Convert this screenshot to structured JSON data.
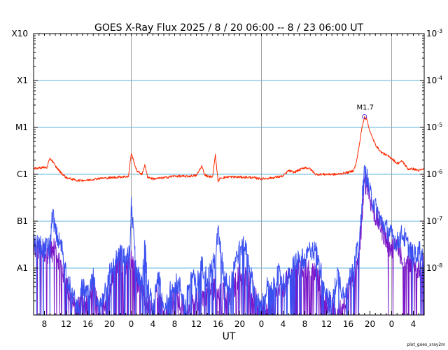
{
  "chart_data": {
    "type": "line",
    "title": "GOES X-Ray Flux   2025  /  8 / 20   06:00 --  8 / 23   06:00   UT",
    "xlabel": "UT",
    "footer": "plot_goes_xray2m",
    "x_start": "2025-08-20 06:00",
    "x_end": "2025-08-23 06:00",
    "x_ticks": [
      "8",
      "12",
      "16",
      "20",
      "0",
      "4",
      "8",
      "12",
      "16",
      "20",
      "0",
      "4",
      "8",
      "12",
      "16",
      "20",
      "0",
      "4"
    ],
    "day_boundaries": [
      "2025-08-21 00:00",
      "2025-08-22 00:00",
      "2025-08-23 00:00"
    ],
    "y_scale": "log",
    "ylim_W_m2": [
      1e-09,
      0.001
    ],
    "y_left_ticks": [
      "",
      "A1",
      "B1",
      "C1",
      "M1",
      "X1",
      "X10"
    ],
    "y_right_ticks": [
      {
        "base": "10",
        "exp": "-8"
      },
      {
        "base": "10",
        "exp": "-7"
      },
      {
        "base": "10",
        "exp": "-6"
      },
      {
        "base": "10",
        "exp": "-5"
      },
      {
        "base": "10",
        "exp": "-4"
      },
      {
        "base": "10",
        "exp": "-3"
      }
    ],
    "grid": "horizontal lines at each decade; vertical lines at 00:00 UT",
    "annotation": {
      "label": "M1.7",
      "time": "2025-08-22 19:00",
      "value": 1.7e-05
    },
    "colors": {
      "long_channel": "#ff2a00",
      "short_channel_a": "#3a50f0",
      "short_channel_b": "#7a18c8",
      "grid_h": "#5fb4dc",
      "grid_v": "#a0a0a0"
    },
    "series": [
      {
        "id": "long",
        "x": [
          "2025-08-20 06:00",
          "2025-08-20 07:30",
          "2025-08-20 08:30",
          "2025-08-20 09:00",
          "2025-08-20 09:30",
          "2025-08-20 10:00",
          "2025-08-20 11:00",
          "2025-08-20 12:00",
          "2025-08-20 14:00",
          "2025-08-20 16:00",
          "2025-08-20 18:00",
          "2025-08-20 20:00",
          "2025-08-20 22:00",
          "2025-08-20 23:30",
          "2025-08-21 00:00",
          "2025-08-21 01:00",
          "2025-08-21 02:00",
          "2025-08-21 02:30",
          "2025-08-21 03:00",
          "2025-08-21 04:00",
          "2025-08-21 06:00",
          "2025-08-21 08:00",
          "2025-08-21 10:00",
          "2025-08-21 12:00",
          "2025-08-21 13:00",
          "2025-08-21 13:30",
          "2025-08-21 14:00",
          "2025-08-21 15:00",
          "2025-08-21 15:30",
          "2025-08-21 16:00",
          "2025-08-21 16:30",
          "2025-08-21 18:00",
          "2025-08-21 20:00",
          "2025-08-21 22:00",
          "2025-08-22 00:00",
          "2025-08-22 02:00",
          "2025-08-22 04:00",
          "2025-08-22 05:00",
          "2025-08-22 06:00",
          "2025-08-22 08:00",
          "2025-08-22 09:00",
          "2025-08-22 10:00",
          "2025-08-22 12:00",
          "2025-08-22 14:00",
          "2025-08-22 16:00",
          "2025-08-22 17:00",
          "2025-08-22 17:30",
          "2025-08-22 18:00",
          "2025-08-22 18:30",
          "2025-08-22 19:00",
          "2025-08-22 19:30",
          "2025-08-22 20:00",
          "2025-08-22 21:00",
          "2025-08-22 22:00",
          "2025-08-23 00:00",
          "2025-08-23 01:00",
          "2025-08-23 02:00",
          "2025-08-23 03:00",
          "2025-08-23 04:00",
          "2025-08-23 05:00",
          "2025-08-23 06:00"
        ],
        "values": [
          1.3e-06,
          1.4e-06,
          1.4e-06,
          2.2e-06,
          1.9e-06,
          1.5e-06,
          1.1e-06,
          8.5e-07,
          7.4e-07,
          7.5e-07,
          8.2e-07,
          8.4e-07,
          8.8e-07,
          9e-07,
          2.8e-06,
          1.2e-06,
          1e-06,
          1.6e-06,
          8.8e-07,
          8e-07,
          8.4e-07,
          9.2e-07,
          9e-07,
          9.4e-07,
          1.5e-06,
          1e-06,
          9.2e-07,
          8.7e-07,
          2.6e-06,
          7.2e-07,
          8.4e-07,
          8.8e-07,
          8.7e-07,
          8.6e-07,
          8e-07,
          8.4e-07,
          9.2e-07,
          1.2e-06,
          1.1e-06,
          1.4e-06,
          1.3e-06,
          1e-06,
          1e-06,
          1e-06,
          1.1e-06,
          1.2e-06,
          1.8e-06,
          4e-06,
          9.5e-06,
          1.7e-05,
          1.4e-05,
          8e-06,
          4.3e-06,
          3e-06,
          2.2e-06,
          1.7e-06,
          1.9e-06,
          1.3e-06,
          1.3e-06,
          1.2e-06,
          1.3e-06
        ]
      },
      {
        "id": "short_a",
        "x": [
          "2025-08-20 06:00",
          "2025-08-20 07:00",
          "2025-08-20 08:00",
          "2025-08-20 09:00",
          "2025-08-20 09:30",
          "2025-08-20 10:00",
          "2025-08-20 10:30",
          "2025-08-20 11:00",
          "2025-08-20 11:30",
          "2025-08-20 12:00",
          "2025-08-20 13:00",
          "2025-08-20 14:00",
          "2025-08-20 15:00",
          "2025-08-20 16:00",
          "2025-08-20 17:00",
          "2025-08-20 18:00",
          "2025-08-20 19:00",
          "2025-08-20 20:00",
          "2025-08-20 21:00",
          "2025-08-20 22:00",
          "2025-08-20 23:00",
          "2025-08-20 23:45",
          "2025-08-21 00:00",
          "2025-08-21 00:30",
          "2025-08-21 01:00",
          "2025-08-21 02:00",
          "2025-08-21 02:30",
          "2025-08-21 03:00",
          "2025-08-21 04:00",
          "2025-08-21 05:00",
          "2025-08-21 06:00",
          "2025-08-21 07:00",
          "2025-08-21 08:00",
          "2025-08-21 09:00",
          "2025-08-21 10:00",
          "2025-08-21 11:00",
          "2025-08-21 12:00",
          "2025-08-21 13:00",
          "2025-08-21 14:00",
          "2025-08-21 15:00",
          "2025-08-21 15:30",
          "2025-08-21 16:00",
          "2025-08-21 17:00",
          "2025-08-21 18:00",
          "2025-08-21 19:00",
          "2025-08-21 20:00",
          "2025-08-21 21:00",
          "2025-08-21 22:00",
          "2025-08-21 23:00",
          "2025-08-22 00:00",
          "2025-08-22 01:00",
          "2025-08-22 02:00",
          "2025-08-22 03:00",
          "2025-08-22 04:00",
          "2025-08-22 05:00",
          "2025-08-22 06:00",
          "2025-08-22 07:00",
          "2025-08-22 08:00",
          "2025-08-22 09:00",
          "2025-08-22 10:00",
          "2025-08-22 11:00",
          "2025-08-22 12:00",
          "2025-08-22 13:00",
          "2025-08-22 14:00",
          "2025-08-22 15:00",
          "2025-08-22 16:00",
          "2025-08-22 17:00",
          "2025-08-22 17:30",
          "2025-08-22 18:00",
          "2025-08-22 18:30",
          "2025-08-22 19:00",
          "2025-08-22 19:30",
          "2025-08-22 20:00",
          "2025-08-22 21:00",
          "2025-08-22 22:00",
          "2025-08-22 23:00",
          "2025-08-23 00:00",
          "2025-08-23 01:00",
          "2025-08-23 02:00",
          "2025-08-23 03:00",
          "2025-08-23 04:00",
          "2025-08-23 05:00",
          "2025-08-23 06:00"
        ],
        "values": [
          3.2e-08,
          3.1e-08,
          2.6e-08,
          2.8e-08,
          1.6e-07,
          6e-08,
          4e-08,
          3e-08,
          2e-08,
          8e-09,
          3e-09,
          1.5e-09,
          4e-09,
          2.5e-09,
          6e-09,
          1.2e-09,
          3e-09,
          8e-09,
          1.3e-08,
          2e-08,
          1.5e-08,
          2e-08,
          2.2e-07,
          4e-08,
          8e-09,
          5e-09,
          3.5e-08,
          4e-09,
          1.5e-09,
          8e-09,
          1.2e-09,
          3e-09,
          5e-09,
          4e-09,
          1.5e-09,
          8e-09,
          4e-09,
          1.2e-08,
          6e-09,
          1.2e-08,
          1.5e-08,
          6e-08,
          8e-09,
          4e-09,
          1.3e-08,
          2.5e-08,
          3e-08,
          8e-09,
          2e-09,
          1.5e-09,
          4e-09,
          3e-09,
          8e-09,
          5e-09,
          6e-09,
          1.3e-08,
          1.6e-08,
          1.5e-08,
          2.5e-08,
          2.3e-08,
          8e-09,
          3e-09,
          1.5e-09,
          8e-09,
          3e-09,
          5e-09,
          1.3e-08,
          2e-08,
          2.5e-08,
          2.5e-07,
          1.1e-06,
          8e-07,
          4e-07,
          2e-07,
          1e-07,
          7e-08,
          5e-08,
          3.5e-08,
          5.5e-08,
          3e-08,
          1.8e-08,
          2.4e-08,
          1.5e-08
        ]
      },
      {
        "id": "short_b",
        "x": [
          "2025-08-20 06:00",
          "2025-08-20 07:00",
          "2025-08-20 08:00",
          "2025-08-20 09:00",
          "2025-08-20 10:00",
          "2025-08-20 11:00",
          "2025-08-20 12:00",
          "2025-08-20 13:00",
          "2025-08-20 14:00",
          "2025-08-20 15:00",
          "2025-08-20 16:00",
          "2025-08-20 17:00",
          "2025-08-20 18:00",
          "2025-08-20 19:00",
          "2025-08-20 20:00",
          "2025-08-20 21:00",
          "2025-08-20 22:00",
          "2025-08-20 23:00",
          "2025-08-21 00:00",
          "2025-08-21 01:00",
          "2025-08-21 02:00",
          "2025-08-21 03:00",
          "2025-08-21 04:00",
          "2025-08-21 05:00",
          "2025-08-21 06:00",
          "2025-08-21 08:00",
          "2025-08-21 10:00",
          "2025-08-21 12:00",
          "2025-08-21 14:00",
          "2025-08-21 16:00",
          "2025-08-21 18:00",
          "2025-08-21 20:00",
          "2025-08-21 22:00",
          "2025-08-22 00:00",
          "2025-08-22 02:00",
          "2025-08-22 04:00",
          "2025-08-22 06:00",
          "2025-08-22 08:00",
          "2025-08-22 10:00",
          "2025-08-22 12:00",
          "2025-08-22 14:00",
          "2025-08-22 16:00",
          "2025-08-22 17:30",
          "2025-08-22 18:00",
          "2025-08-22 18:30",
          "2025-08-22 19:00",
          "2025-08-22 19:30",
          "2025-08-22 20:00",
          "2025-08-22 21:00",
          "2025-08-22 22:00",
          "2025-08-22 23:00",
          "2025-08-23 00:00",
          "2025-08-23 01:00",
          "2025-08-23 02:00",
          "2025-08-23 03:00",
          "2025-08-23 04:00",
          "2025-08-23 05:00",
          "2025-08-23 06:00"
        ],
        "values": [
          2.6e-08,
          2.5e-08,
          2.2e-08,
          2.2e-08,
          2.5e-08,
          1.2e-08,
          5e-09,
          2e-09,
          1e-09,
          3e-09,
          1.5e-09,
          4e-09,
          1e-09,
          2e-09,
          3e-09,
          9e-09,
          1.5e-08,
          1.2e-08,
          1.5e-08,
          6e-09,
          3e-09,
          2e-09,
          1e-09,
          5e-09,
          1e-09,
          3e-09,
          1e-09,
          2e-09,
          3e-09,
          4e-09,
          2e-09,
          8e-09,
          5e-09,
          1e-09,
          2e-09,
          4e-09,
          8e-09,
          1e-08,
          8e-09,
          2e-09,
          1e-09,
          3e-09,
          9e-09,
          1.5e-08,
          1.2e-07,
          6e-07,
          7e-07,
          3e-07,
          1.3e-07,
          8e-08,
          4e-08,
          2.5e-08,
          3e-08,
          1.8e-08,
          1.2e-08,
          1.7e-08,
          1e-08,
          1.1e-08
        ]
      }
    ]
  }
}
